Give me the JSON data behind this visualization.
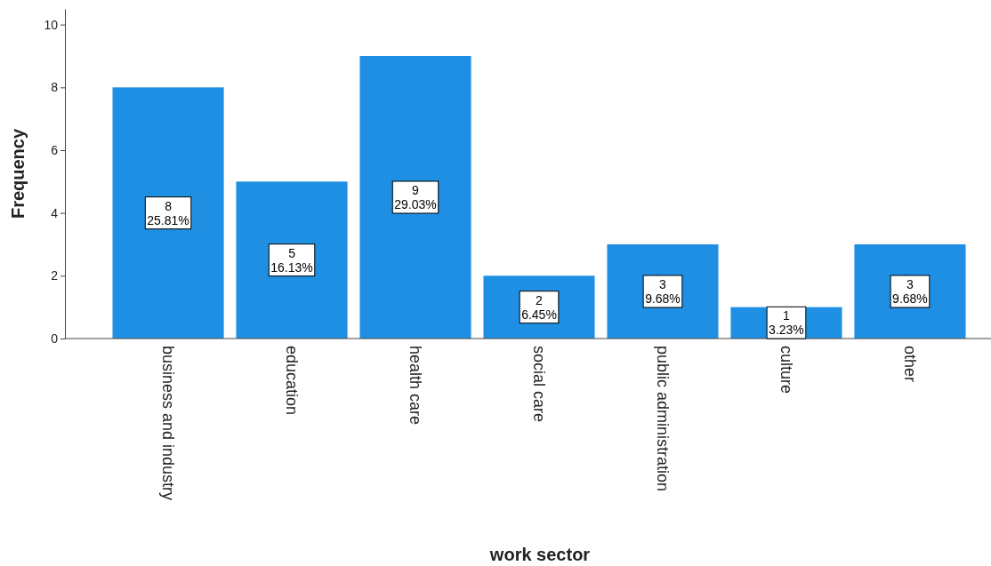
{
  "chart_data": {
    "type": "bar",
    "xlabel": "work sector",
    "ylabel": "Frequency",
    "categories": [
      "business and industry",
      "education",
      "health care",
      "social care",
      "public administration",
      "culture",
      "other"
    ],
    "values": [
      8,
      5,
      9,
      2,
      3,
      1,
      3
    ],
    "color": "#1f8fe3",
    "value_labels": [
      "8\n25.81%",
      "5\n16.13%",
      "9\n29.03%",
      "2\n6.45%",
      "3\n9.68%",
      "1\n3.23%",
      "3\n9.68%"
    ],
    "ylim": [
      0,
      10.5
    ],
    "yticks": [
      0,
      2,
      4,
      6,
      8,
      10
    ],
    "grid": false
  }
}
